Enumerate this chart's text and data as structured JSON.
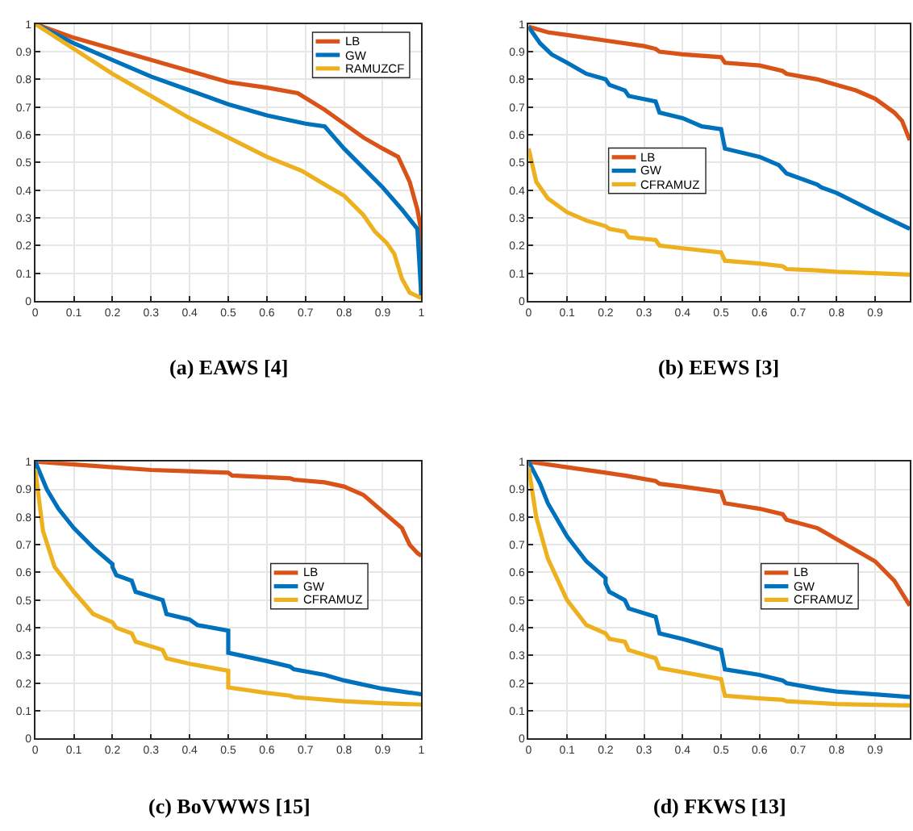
{
  "chart_data": [
    {
      "type": "line",
      "title": "(a) EAWS [4]",
      "xlim": [
        0,
        1
      ],
      "ylim": [
        0,
        1
      ],
      "xticks": [
        0,
        0.1,
        0.2,
        0.3,
        0.4,
        0.5,
        0.6,
        0.7,
        0.8,
        0.9,
        1
      ],
      "yticks": [
        0,
        0.1,
        0.2,
        0.3,
        0.4,
        0.5,
        0.6,
        0.7,
        0.8,
        0.9,
        1
      ],
      "grid": true,
      "legend": "top right",
      "marker": "none",
      "line_style": "solid",
      "series": [
        {
          "name": "LB",
          "color": "#d95319",
          "x": [
            0,
            0.1,
            0.2,
            0.3,
            0.4,
            0.5,
            0.6,
            0.68,
            0.75,
            0.8,
            0.85,
            0.9,
            0.94,
            0.97,
            0.99,
            1,
            1
          ],
          "values": [
            1,
            0.95,
            0.91,
            0.87,
            0.83,
            0.79,
            0.77,
            0.75,
            0.69,
            0.64,
            0.59,
            0.55,
            0.52,
            0.43,
            0.33,
            0.25,
            0.02
          ]
        },
        {
          "name": "GW",
          "color": "#0072bd",
          "x": [
            0,
            0.1,
            0.2,
            0.3,
            0.4,
            0.5,
            0.6,
            0.7,
            0.75,
            0.8,
            0.85,
            0.9,
            0.95,
            0.99,
            1
          ],
          "values": [
            1,
            0.93,
            0.87,
            0.81,
            0.76,
            0.71,
            0.67,
            0.64,
            0.63,
            0.55,
            0.48,
            0.41,
            0.33,
            0.26,
            0.02
          ]
        },
        {
          "name": "RAMUZCF",
          "color": "#edb120",
          "x": [
            0,
            0.1,
            0.2,
            0.3,
            0.4,
            0.5,
            0.6,
            0.69,
            0.75,
            0.8,
            0.85,
            0.88,
            0.91,
            0.93,
            0.95,
            0.97,
            1
          ],
          "values": [
            1,
            0.91,
            0.82,
            0.74,
            0.66,
            0.59,
            0.52,
            0.47,
            0.42,
            0.38,
            0.31,
            0.25,
            0.21,
            0.17,
            0.08,
            0.03,
            0.01
          ]
        }
      ]
    },
    {
      "type": "line",
      "title": "(b) EEWS [3]",
      "xlim": [
        0,
        0.99
      ],
      "ylim": [
        0,
        1
      ],
      "xticks": [
        0,
        0.1,
        0.2,
        0.3,
        0.4,
        0.5,
        0.6,
        0.7,
        0.8,
        0.9
      ],
      "yticks": [
        0,
        0.1,
        0.2,
        0.3,
        0.4,
        0.5,
        0.6,
        0.7,
        0.8,
        0.9,
        1
      ],
      "grid": true,
      "legend": "left",
      "marker": "none",
      "line_style": "solid",
      "series": [
        {
          "name": "LB",
          "color": "#d95319",
          "x": [
            0,
            0.05,
            0.1,
            0.2,
            0.3,
            0.33,
            0.34,
            0.4,
            0.5,
            0.51,
            0.6,
            0.66,
            0.67,
            0.75,
            0.8,
            0.85,
            0.9,
            0.95,
            0.97,
            0.99
          ],
          "values": [
            0.99,
            0.97,
            0.96,
            0.94,
            0.92,
            0.91,
            0.9,
            0.89,
            0.88,
            0.86,
            0.85,
            0.83,
            0.82,
            0.8,
            0.78,
            0.76,
            0.73,
            0.68,
            0.65,
            0.58
          ]
        },
        {
          "name": "GW",
          "color": "#0072bd",
          "x": [
            0,
            0.03,
            0.06,
            0.1,
            0.15,
            0.2,
            0.21,
            0.25,
            0.26,
            0.33,
            0.34,
            0.4,
            0.45,
            0.5,
            0.51,
            0.6,
            0.65,
            0.67,
            0.75,
            0.76,
            0.8,
            0.9,
            0.99
          ],
          "values": [
            0.99,
            0.93,
            0.89,
            0.86,
            0.82,
            0.8,
            0.78,
            0.76,
            0.74,
            0.72,
            0.68,
            0.66,
            0.63,
            0.62,
            0.55,
            0.52,
            0.49,
            0.46,
            0.42,
            0.41,
            0.39,
            0.32,
            0.26
          ]
        },
        {
          "name": "CFRAMUZ",
          "color": "#edb120",
          "x": [
            0,
            0.02,
            0.05,
            0.1,
            0.15,
            0.2,
            0.21,
            0.25,
            0.26,
            0.33,
            0.34,
            0.4,
            0.5,
            0.51,
            0.6,
            0.66,
            0.67,
            0.75,
            0.8,
            0.9,
            0.99
          ],
          "values": [
            0.55,
            0.43,
            0.37,
            0.32,
            0.29,
            0.27,
            0.26,
            0.25,
            0.23,
            0.22,
            0.2,
            0.19,
            0.175,
            0.145,
            0.135,
            0.125,
            0.115,
            0.11,
            0.105,
            0.1,
            0.095
          ]
        }
      ]
    },
    {
      "type": "line",
      "title": "(c) BoVWWS [15]",
      "xlim": [
        0,
        1
      ],
      "ylim": [
        0,
        1
      ],
      "xticks": [
        0,
        0.1,
        0.2,
        0.3,
        0.4,
        0.5,
        0.6,
        0.7,
        0.8,
        0.9,
        1
      ],
      "yticks": [
        0,
        0.1,
        0.2,
        0.3,
        0.4,
        0.5,
        0.6,
        0.7,
        0.8,
        0.9,
        1
      ],
      "grid": true,
      "legend": "right",
      "marker": "none",
      "line_style": "solid",
      "series": [
        {
          "name": "LB",
          "color": "#d95319",
          "x": [
            0,
            0.1,
            0.2,
            0.3,
            0.4,
            0.5,
            0.51,
            0.66,
            0.67,
            0.75,
            0.8,
            0.85,
            0.9,
            0.95,
            0.97,
            0.99,
            1
          ],
          "values": [
            1,
            0.99,
            0.98,
            0.97,
            0.965,
            0.96,
            0.95,
            0.94,
            0.935,
            0.925,
            0.91,
            0.88,
            0.82,
            0.76,
            0.7,
            0.67,
            0.66
          ]
        },
        {
          "name": "GW",
          "color": "#0072bd",
          "x": [
            0,
            0.03,
            0.06,
            0.1,
            0.15,
            0.2,
            0.2,
            0.21,
            0.25,
            0.26,
            0.33,
            0.34,
            0.4,
            0.42,
            0.5,
            0.5,
            0.6,
            0.66,
            0.67,
            0.75,
            0.8,
            0.9,
            1
          ],
          "values": [
            1,
            0.9,
            0.83,
            0.76,
            0.69,
            0.63,
            0.62,
            0.59,
            0.57,
            0.53,
            0.5,
            0.45,
            0.43,
            0.41,
            0.39,
            0.31,
            0.28,
            0.26,
            0.25,
            0.23,
            0.21,
            0.18,
            0.16
          ]
        },
        {
          "name": "CFRAMUZ",
          "color": "#edb120",
          "x": [
            0,
            0.02,
            0.05,
            0.1,
            0.15,
            0.2,
            0.21,
            0.25,
            0.26,
            0.33,
            0.34,
            0.4,
            0.5,
            0.5,
            0.6,
            0.66,
            0.67,
            0.8,
            0.9,
            1
          ],
          "values": [
            0.97,
            0.75,
            0.62,
            0.53,
            0.45,
            0.42,
            0.4,
            0.38,
            0.35,
            0.32,
            0.29,
            0.27,
            0.245,
            0.185,
            0.165,
            0.155,
            0.15,
            0.135,
            0.128,
            0.123
          ]
        }
      ]
    },
    {
      "type": "line",
      "title": "(d) FKWS [13]",
      "xlim": [
        0,
        0.99
      ],
      "ylim": [
        0,
        1
      ],
      "xticks": [
        0,
        0.1,
        0.2,
        0.3,
        0.4,
        0.5,
        0.6,
        0.7,
        0.8,
        0.9
      ],
      "yticks": [
        0,
        0.1,
        0.2,
        0.3,
        0.4,
        0.5,
        0.6,
        0.7,
        0.8,
        0.9,
        1
      ],
      "grid": true,
      "legend": "right",
      "marker": "none",
      "line_style": "solid",
      "series": [
        {
          "name": "LB",
          "color": "#d95319",
          "x": [
            0,
            0.1,
            0.2,
            0.25,
            0.33,
            0.34,
            0.4,
            0.5,
            0.51,
            0.6,
            0.66,
            0.67,
            0.75,
            0.8,
            0.85,
            0.9,
            0.95,
            0.99
          ],
          "values": [
            1,
            0.98,
            0.96,
            0.95,
            0.93,
            0.92,
            0.91,
            0.89,
            0.85,
            0.83,
            0.81,
            0.79,
            0.76,
            0.72,
            0.68,
            0.64,
            0.57,
            0.48
          ]
        },
        {
          "name": "GW",
          "color": "#0072bd",
          "x": [
            0,
            0.03,
            0.05,
            0.1,
            0.15,
            0.2,
            0.2,
            0.21,
            0.25,
            0.26,
            0.33,
            0.34,
            0.4,
            0.45,
            0.5,
            0.51,
            0.6,
            0.66,
            0.67,
            0.75,
            0.8,
            0.9,
            0.99
          ],
          "values": [
            1,
            0.92,
            0.85,
            0.73,
            0.64,
            0.58,
            0.56,
            0.53,
            0.5,
            0.47,
            0.44,
            0.38,
            0.36,
            0.34,
            0.32,
            0.25,
            0.23,
            0.21,
            0.2,
            0.18,
            0.17,
            0.16,
            0.15
          ]
        },
        {
          "name": "CFRAMUZ",
          "color": "#edb120",
          "x": [
            0,
            0.02,
            0.05,
            0.1,
            0.15,
            0.2,
            0.21,
            0.25,
            0.26,
            0.33,
            0.34,
            0.4,
            0.5,
            0.51,
            0.6,
            0.66,
            0.67,
            0.8,
            0.9,
            0.99
          ],
          "values": [
            0.98,
            0.8,
            0.65,
            0.5,
            0.41,
            0.38,
            0.36,
            0.35,
            0.32,
            0.29,
            0.255,
            0.24,
            0.215,
            0.155,
            0.145,
            0.14,
            0.135,
            0.125,
            0.122,
            0.12
          ]
        }
      ]
    }
  ]
}
